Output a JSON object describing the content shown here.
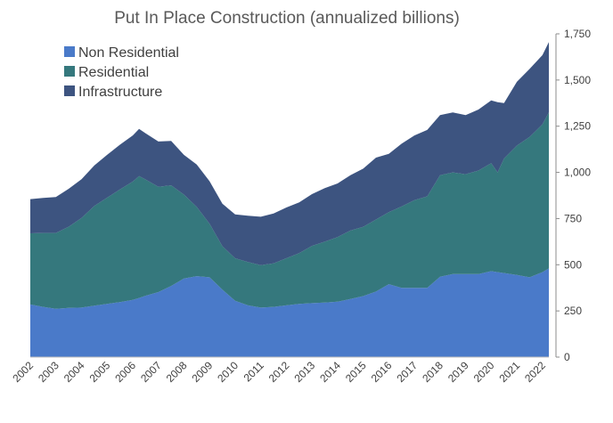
{
  "chart_data": {
    "type": "area",
    "stacked": true,
    "title": "Put In Place Construction (annualized billions)",
    "xlabel": "",
    "ylabel": "",
    "y_axis_side": "right",
    "ylim": [
      0,
      1750
    ],
    "yticks": [
      0,
      250,
      500,
      750,
      1000,
      1250,
      1500,
      1750
    ],
    "ytick_labels": [
      "0",
      "250",
      "500",
      "750",
      "1,000",
      "1,250",
      "1,500",
      "1,750"
    ],
    "xlim": [
      2002.0,
      2022.25
    ],
    "xticks": [
      2002,
      2003,
      2004,
      2005,
      2006,
      2007,
      2008,
      2009,
      2010,
      2011,
      2012,
      2013,
      2014,
      2015,
      2016,
      2017,
      2018,
      2019,
      2020,
      2021,
      2022
    ],
    "xtick_labels": [
      "2002",
      "2003",
      "2004",
      "2005",
      "2006",
      "2007",
      "2008",
      "2009",
      "2010",
      "2011",
      "2012",
      "2013",
      "2014",
      "2015",
      "2016",
      "2017",
      "2018",
      "2019",
      "2020",
      "2021",
      "2022"
    ],
    "grid": false,
    "legend_position": "top-left",
    "x": [
      2002.0,
      2002.5,
      2003.0,
      2003.5,
      2004.0,
      2004.5,
      2005.0,
      2005.5,
      2006.0,
      2006.25,
      2006.5,
      2007.0,
      2007.5,
      2008.0,
      2008.5,
      2009.0,
      2009.5,
      2010.0,
      2010.5,
      2011.0,
      2011.5,
      2012.0,
      2012.5,
      2013.0,
      2013.5,
      2014.0,
      2014.5,
      2015.0,
      2015.5,
      2016.0,
      2016.5,
      2017.0,
      2017.5,
      2018.0,
      2018.5,
      2019.0,
      2019.5,
      2020.0,
      2020.25,
      2020.5,
      2021.0,
      2021.5,
      2022.0,
      2022.25
    ],
    "series": [
      {
        "name": "Non Residential",
        "color": "#4a7ac9",
        "values": [
          285,
          272,
          262,
          266,
          268,
          278,
          288,
          298,
          310,
          320,
          332,
          352,
          385,
          425,
          438,
          432,
          365,
          305,
          280,
          268,
          272,
          280,
          288,
          292,
          295,
          300,
          315,
          330,
          355,
          395,
          375,
          375,
          375,
          435,
          450,
          450,
          450,
          465,
          460,
          455,
          445,
          432,
          460,
          480
        ]
      },
      {
        "name": "Residential",
        "color": "#35787d",
        "values": [
          385,
          400,
          410,
          440,
          485,
          540,
          575,
          610,
          640,
          660,
          630,
          570,
          545,
          455,
          375,
          290,
          235,
          230,
          235,
          230,
          235,
          255,
          275,
          310,
          330,
          350,
          370,
          375,
          390,
          390,
          440,
          475,
          495,
          550,
          550,
          540,
          560,
          585,
          540,
          620,
          700,
          760,
          800,
          845
        ]
      },
      {
        "name": "Infrastructure",
        "color": "#3d5480",
        "values": [
          185,
          190,
          195,
          205,
          210,
          220,
          232,
          242,
          250,
          255,
          250,
          245,
          240,
          215,
          230,
          230,
          230,
          238,
          250,
          262,
          270,
          275,
          275,
          280,
          290,
          290,
          300,
          315,
          335,
          315,
          340,
          350,
          360,
          325,
          325,
          320,
          330,
          340,
          380,
          300,
          345,
          368,
          375,
          380
        ]
      }
    ]
  }
}
